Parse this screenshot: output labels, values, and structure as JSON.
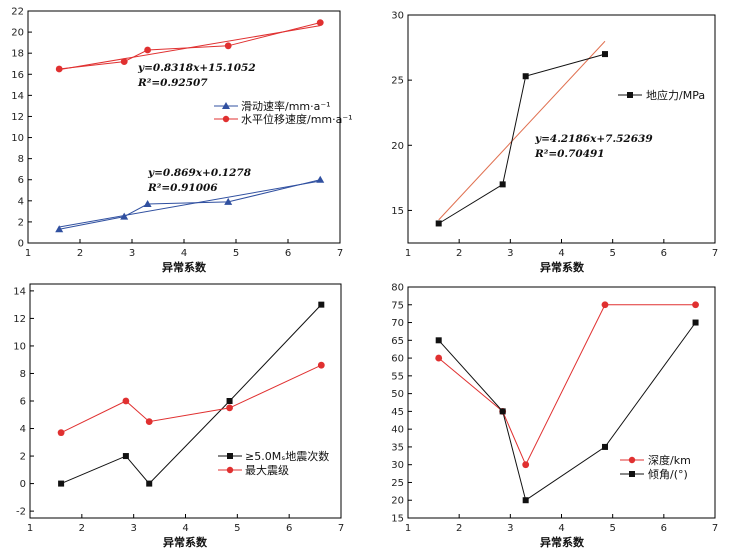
{
  "colors": {
    "blue": "#3050a0",
    "red": "#e03030",
    "black": "#111111",
    "fit_red": "#e07050"
  },
  "chart_data": [
    {
      "type": "line",
      "xlabel": "异常系数",
      "xlim": [
        1,
        7
      ],
      "ylim": [
        0,
        22
      ],
      "xticks": [
        1,
        2,
        3,
        4,
        5,
        6,
        7
      ],
      "yticks": [
        0,
        2,
        4,
        6,
        8,
        10,
        12,
        14,
        16,
        18,
        20,
        22
      ],
      "legend_placement": "center-right",
      "series": [
        {
          "name": "滑动速率/mm·a⁻¹",
          "marker": "triangle",
          "color": "#3050a0",
          "x": [
            1.6,
            2.85,
            3.3,
            4.85,
            6.62
          ],
          "y": [
            1.3,
            2.5,
            3.7,
            3.9,
            6.0
          ]
        },
        {
          "name": "水平位移速度/mm·a⁻¹",
          "marker": "circle",
          "color": "#e03030",
          "x": [
            1.6,
            2.85,
            3.3,
            4.85,
            6.62
          ],
          "y": [
            16.5,
            17.2,
            18.3,
            18.7,
            20.9
          ]
        }
      ],
      "fits": [
        {
          "color": "#3050a0",
          "slope": 0.869,
          "intercept": 0.1278,
          "x": [
            1.6,
            6.62
          ],
          "equation": "y=0.869x+0.1278",
          "r2_label": "R²=0.91006"
        },
        {
          "color": "#e03030",
          "slope": 0.8318,
          "intercept": 15.1052,
          "x": [
            1.6,
            6.62
          ],
          "equation": "y=0.8318x+15.1052",
          "r2_label": "R²=0.92507"
        }
      ]
    },
    {
      "type": "line",
      "xlabel": "异常系数",
      "xlim": [
        1,
        7
      ],
      "ylim": [
        12.5,
        30
      ],
      "xticks": [
        1,
        2,
        3,
        4,
        5,
        6,
        7
      ],
      "yticks": [
        15,
        20,
        25,
        30
      ],
      "legend_placement": "top-right",
      "series": [
        {
          "name": "地应力/MPa",
          "marker": "square",
          "color": "#111111",
          "x": [
            1.6,
            2.85,
            3.3,
            4.85
          ],
          "y": [
            14.0,
            17.0,
            25.3,
            27.0
          ]
        }
      ],
      "fits": [
        {
          "color": "#e07050",
          "slope": 4.2186,
          "intercept": 7.52639,
          "x": [
            1.6,
            4.85
          ],
          "equation": "y=4.2186x+7.52639",
          "r2_label": "R²=0.70491"
        }
      ]
    },
    {
      "type": "line",
      "xlabel": "异常系数",
      "xlim": [
        1,
        7
      ],
      "ylim": [
        -2.5,
        14.5
      ],
      "xticks": [
        1,
        2,
        3,
        4,
        5,
        6,
        7
      ],
      "yticks": [
        -2,
        0,
        2,
        4,
        6,
        8,
        10,
        12,
        14
      ],
      "legend_placement": "bottom-right",
      "series": [
        {
          "name": "≥5.0Mₛ地震次数",
          "marker": "square",
          "color": "#111111",
          "x": [
            1.6,
            2.85,
            3.3,
            4.85,
            6.62
          ],
          "y": [
            0,
            2,
            0,
            6,
            13
          ]
        },
        {
          "name": "最大震级",
          "marker": "circle",
          "color": "#e03030",
          "x": [
            1.6,
            2.85,
            3.3,
            4.85,
            6.62
          ],
          "y": [
            3.7,
            6.0,
            4.5,
            5.5,
            8.6
          ]
        }
      ],
      "fits": []
    },
    {
      "type": "line",
      "xlabel": "异常系数",
      "xlim": [
        1,
        7
      ],
      "ylim": [
        15,
        80
      ],
      "xticks": [
        1,
        2,
        3,
        4,
        5,
        6,
        7
      ],
      "yticks": [
        15,
        20,
        25,
        30,
        35,
        40,
        45,
        50,
        55,
        60,
        65,
        70,
        75,
        80
      ],
      "legend_placement": "bottom-right",
      "series": [
        {
          "name": "深度/km",
          "marker": "circle",
          "color": "#e03030",
          "x": [
            1.6,
            2.85,
            3.3,
            4.85,
            6.62
          ],
          "y": [
            60,
            45,
            30,
            75,
            75
          ]
        },
        {
          "name": "倾角/(°)",
          "marker": "square",
          "color": "#111111",
          "x": [
            1.6,
            2.85,
            3.3,
            4.85,
            6.62
          ],
          "y": [
            65,
            45,
            20,
            35,
            70
          ]
        }
      ],
      "fits": []
    }
  ]
}
